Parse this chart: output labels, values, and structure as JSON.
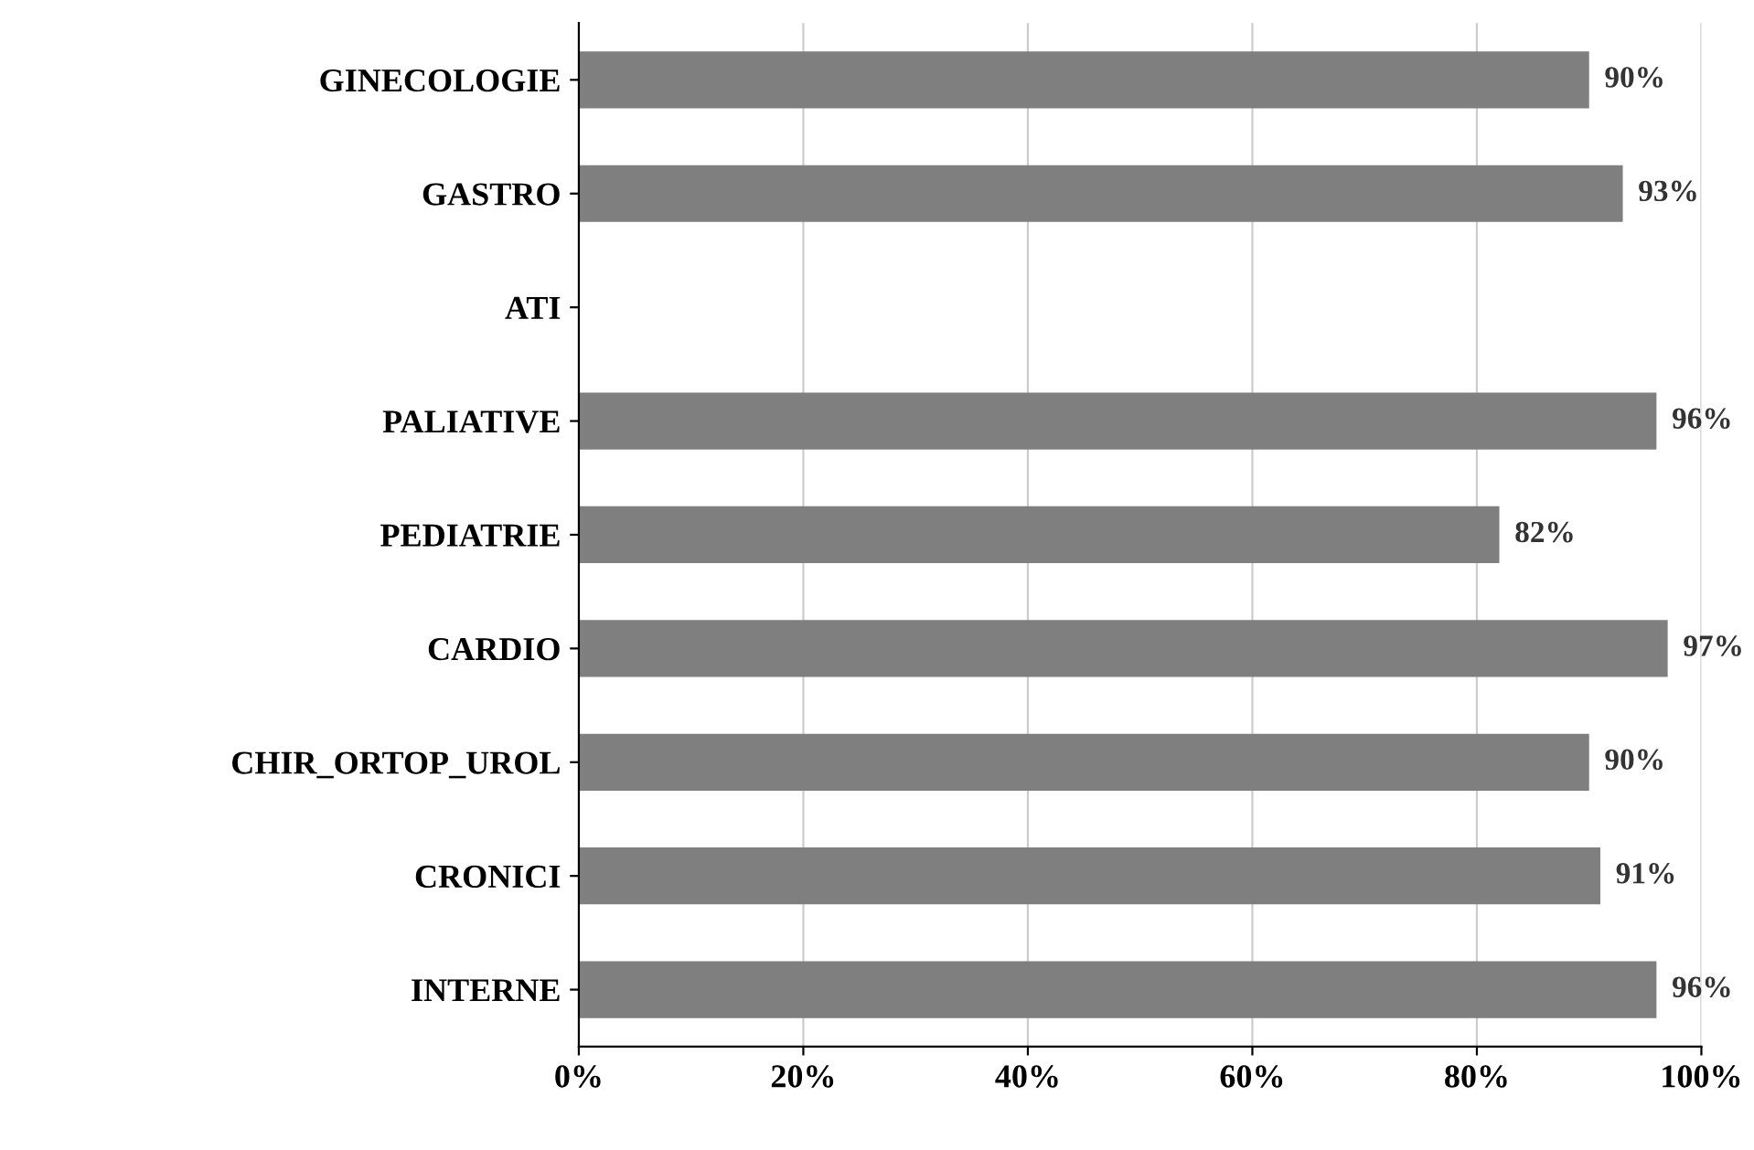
{
  "chart_data": {
    "type": "bar",
    "orientation": "horizontal",
    "categories": [
      "GINECOLOGIE",
      "GASTRO",
      "ATI",
      "PALIATIVE",
      "PEDIATRIE",
      "CARDIO",
      "CHIR_ORTOP_UROL",
      "CRONICI",
      "INTERNE"
    ],
    "values": [
      90,
      93,
      null,
      96,
      82,
      97,
      90,
      91,
      96
    ],
    "value_labels": [
      "90%",
      "93%",
      null,
      "96%",
      "82%",
      "97%",
      "90%",
      "91%",
      "96%"
    ],
    "color": "#7f7f7f",
    "xlim": [
      0,
      100
    ],
    "xticks": [
      {
        "value": 0,
        "label": "0%"
      },
      {
        "value": 20,
        "label": "20%"
      },
      {
        "value": 40,
        "label": "40%"
      },
      {
        "value": 60,
        "label": "60%"
      },
      {
        "value": 80,
        "label": "80%"
      },
      {
        "value": 100,
        "label": "100%"
      }
    ],
    "grid": "x"
  }
}
